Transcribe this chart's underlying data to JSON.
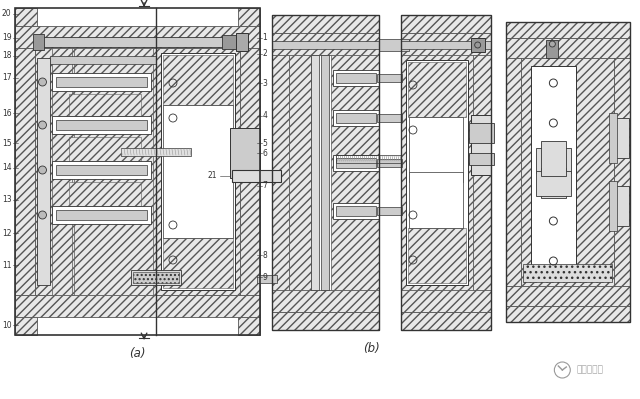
{
  "bg_color": "#ffffff",
  "lc": "#333333",
  "hatch_fc": "#e8e8e8",
  "hatch_ec": "#555555",
  "rod_fc": "#cccccc",
  "rod_dark": "#999999",
  "white": "#ffffff",
  "label_a": "(a)",
  "label_b": "(b)",
  "watermark": "机械工程师",
  "nums_left": [
    "20",
    "19",
    "18",
    "17",
    "16",
    "15",
    "14",
    "13",
    "12",
    "11",
    "10"
  ],
  "nums_right": [
    "1",
    "2",
    "3",
    "4",
    "5",
    "6",
    "7",
    "8",
    "9"
  ],
  "num_21": "21"
}
